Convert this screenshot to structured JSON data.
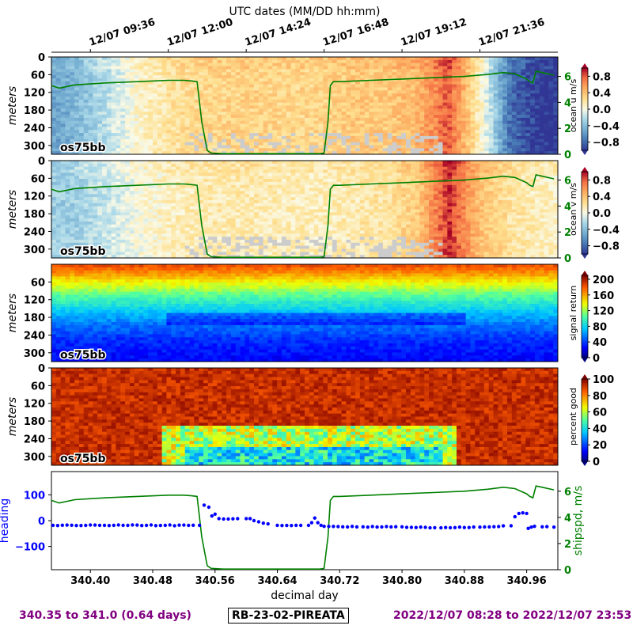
{
  "footer": {
    "left": "340.35 to 341.0 (0.64 days)",
    "center": "RB-23-02-PIREATA",
    "right": "2022/12/07 08:28 to 2022/12/07 23:53"
  },
  "chart_data": [
    {
      "type": "heatmap",
      "title": "UTC dates (MM/DD hh:mm)",
      "top_ticks": [
        "12/07 09:36",
        "12/07 12:00",
        "12/07 14:24",
        "12/07 16:48",
        "12/07 19:12",
        "12/07 21:36"
      ],
      "top_tick_days": [
        340.4,
        340.5,
        340.6,
        340.7,
        340.8,
        340.9
      ],
      "panels": [
        {
          "variable": "ocean u m/s",
          "ylabel": "meters",
          "label": "os75bb",
          "yticks": [
            0,
            60,
            120,
            180,
            240,
            300
          ],
          "ylim": [
            330,
            0
          ],
          "colormap": "RdYlBu_r",
          "clim": [
            -1.0,
            1.0
          ],
          "colorbar_ticks": [
            "0.8",
            "0.4",
            "0.0",
            "−0.4",
            "−0.8"
          ],
          "colorbar_tick_values": [
            0.8,
            0.4,
            0.0,
            -0.4,
            -0.8
          ],
          "right_axis_ticks": [
            0,
            2,
            4,
            6
          ],
          "overlay": "ship speed (m/s)",
          "x_profile": [
            340.35,
            340.38,
            340.42,
            340.46,
            340.5,
            340.54,
            340.58,
            340.62,
            340.66,
            340.7,
            340.74,
            340.78,
            340.82,
            340.86,
            340.9,
            340.94,
            340.98
          ],
          "value_profile": [
            -0.55,
            -0.45,
            -0.2,
            0.05,
            0.2,
            0.28,
            0.3,
            0.3,
            0.28,
            0.3,
            0.35,
            0.35,
            0.45,
            0.8,
            0.1,
            -0.8,
            -1.0
          ]
        },
        {
          "variable": "ocean v m/s",
          "ylabel": "meters",
          "label": "os75bb",
          "yticks": [
            0,
            60,
            120,
            180,
            240,
            300
          ],
          "ylim": [
            330,
            0
          ],
          "colormap": "RdYlBu_r",
          "clim": [
            -1.0,
            1.0
          ],
          "colorbar_ticks": [
            "0.8",
            "0.4",
            "0.0",
            "−0.4",
            "−0.8"
          ],
          "colorbar_tick_values": [
            0.8,
            0.4,
            0.0,
            -0.4,
            -0.8
          ],
          "right_axis_ticks": [
            0,
            2,
            4,
            6
          ],
          "overlay": "ship speed (m/s)",
          "x_profile": [
            340.35,
            340.38,
            340.42,
            340.46,
            340.5,
            340.54,
            340.58,
            340.62,
            340.66,
            340.7,
            340.74,
            340.78,
            340.82,
            340.86,
            340.9,
            340.94,
            340.98
          ],
          "value_profile": [
            -0.3,
            -0.3,
            -0.15,
            0.0,
            0.1,
            0.15,
            0.15,
            0.15,
            0.12,
            0.12,
            0.15,
            0.2,
            0.35,
            0.9,
            0.4,
            0.2,
            0.1
          ]
        },
        {
          "variable": "signal return",
          "ylabel": "meters",
          "label": "os75bb",
          "yticks": [
            60,
            120,
            180,
            240,
            300
          ],
          "ylim": [
            330,
            0
          ],
          "colormap": "jet",
          "clim": [
            0,
            210
          ],
          "colorbar_ticks": [
            "200",
            "160",
            "120",
            "80",
            "40",
            "0"
          ],
          "colorbar_tick_values": [
            200,
            160,
            120,
            80,
            40,
            0
          ],
          "depth_profile": [
            0,
            30,
            60,
            100,
            150,
            200,
            260,
            330
          ],
          "value_profile_by_depth": [
            185,
            165,
            140,
            110,
            80,
            55,
            35,
            25
          ]
        },
        {
          "variable": "percent good",
          "ylabel": "meters",
          "label": "os75bb",
          "yticks": [
            0,
            60,
            120,
            180,
            240,
            300
          ],
          "ylim": [
            330,
            0
          ],
          "colormap": "jet",
          "clim": [
            0,
            100
          ],
          "colorbar_ticks": [
            "100",
            "80",
            "60",
            "40",
            "20",
            "0"
          ],
          "colorbar_tick_values": [
            100,
            80,
            60,
            40,
            20,
            0
          ]
        }
      ]
    },
    {
      "type": "scatter",
      "xlabel": "decimal day",
      "xticks": [
        "340.40",
        "340.48",
        "340.56",
        "340.64",
        "340.72",
        "340.80",
        "340.88",
        "340.96"
      ],
      "xtick_values": [
        340.4,
        340.48,
        340.56,
        340.64,
        340.72,
        340.8,
        340.88,
        340.96
      ],
      "xlim": [
        340.35,
        341.0
      ],
      "left_axis": {
        "label": "heading",
        "ticks": [
          "100",
          "0",
          "−100"
        ],
        "tick_values": [
          100,
          0,
          -100
        ],
        "ylim": [
          -190,
          190
        ],
        "color": "#0000ff"
      },
      "right_axis": {
        "label": "shipspd, m/s",
        "ticks": [
          "6",
          "4",
          "2",
          "0"
        ],
        "tick_values": [
          6,
          4,
          2,
          0
        ],
        "ylim": [
          0,
          7.5
        ],
        "color": "#008000"
      },
      "series": [
        {
          "name": "heading",
          "kind": "scatter",
          "color": "#0000ff",
          "x": [
            340.352,
            340.54,
            340.546,
            340.552,
            340.556,
            340.56,
            340.565,
            340.6,
            340.605,
            340.61,
            340.64,
            340.68,
            340.684,
            340.688,
            340.692,
            340.696,
            340.7,
            340.75,
            340.8,
            340.85,
            340.9,
            340.94,
            340.945,
            340.95,
            340.955,
            340.96,
            340.962,
            340.966,
            340.97,
            340.98,
            340.995
          ],
          "y": [
            -18,
            -18,
            60,
            52,
            18,
            25,
            8,
            8,
            8,
            0,
            -18,
            -18,
            -8,
            10,
            -8,
            -18,
            -22,
            -24,
            -24,
            -28,
            -25,
            -20,
            15,
            28,
            30,
            28,
            -30,
            -25,
            -22,
            -24,
            -25
          ]
        },
        {
          "name": "shipspd",
          "kind": "line",
          "color": "#008000",
          "x": [
            340.35,
            340.36,
            340.38,
            340.42,
            340.46,
            340.5,
            340.52,
            340.53,
            340.537,
            340.543,
            340.55,
            340.555,
            340.57,
            340.6,
            340.65,
            340.69,
            340.695,
            340.7,
            340.705,
            340.708,
            340.712,
            340.72,
            340.76,
            340.8,
            340.84,
            340.88,
            340.91,
            340.93,
            340.945,
            340.96,
            340.964,
            340.968,
            340.972,
            340.98,
            340.995
          ],
          "y": [
            5.3,
            5.1,
            5.35,
            5.5,
            5.6,
            5.7,
            5.7,
            5.65,
            5.6,
            2.5,
            0.3,
            0.1,
            0.05,
            0.05,
            0.05,
            0.05,
            0.05,
            0.1,
            2.5,
            5.3,
            5.6,
            5.6,
            5.7,
            5.8,
            5.9,
            6.0,
            6.15,
            6.3,
            6.2,
            5.8,
            5.6,
            5.5,
            6.4,
            6.3,
            6.1
          ]
        }
      ]
    }
  ]
}
